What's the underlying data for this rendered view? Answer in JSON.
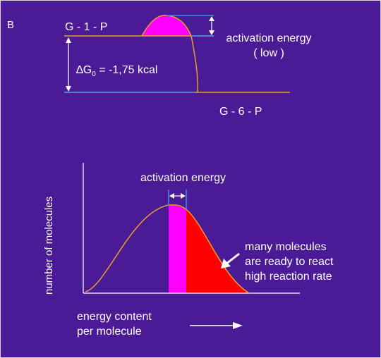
{
  "panel_letter": "B",
  "top_diagram": {
    "reactant_label": "G - 1 - P",
    "product_label": "G - 6 - P",
    "delta_g": {
      "symbol": "∆G",
      "subscript": "0",
      "value": " = -1,75 kcal"
    },
    "activation_label_line1": "activation energy",
    "activation_label_line2": "( low )"
  },
  "bottom_diagram": {
    "activation_label": "activation energy",
    "y_axis_label": "number of molecules",
    "x_axis_label_line1": "energy content",
    "x_axis_label_line2": "per molecule",
    "note_lines": [
      "many molecules",
      "are ready to react",
      "high reaction rate"
    ]
  },
  "colors": {
    "background": "#4b1a97",
    "curve": "#e8a020",
    "levels": "#e8a020",
    "activation_lines": "#3a8cf0",
    "axes": "#ffffff",
    "magenta_fill": "#ff00ff",
    "red_fill": "#ff0000",
    "text": "#ffffff"
  }
}
